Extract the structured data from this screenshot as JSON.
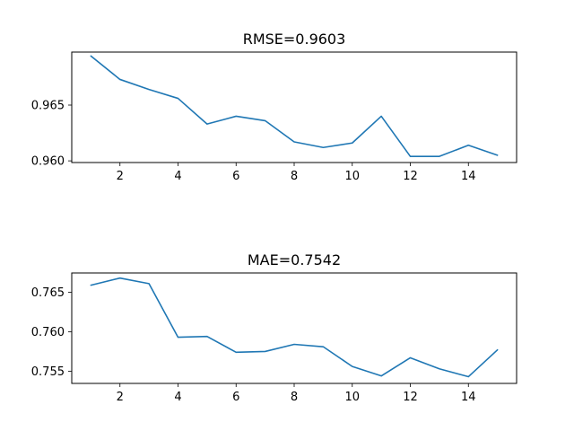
{
  "chart_data": [
    {
      "type": "line",
      "title": "RMSE=0.9603",
      "xlabel": "",
      "ylabel": "",
      "xlim": [
        0.34,
        15.66
      ],
      "ylim": [
        0.95985,
        0.96975
      ],
      "xticks": [
        2,
        4,
        6,
        8,
        10,
        12,
        14
      ],
      "yticks": [
        0.96,
        0.965
      ],
      "ytick_labels": [
        "0.960",
        "0.965"
      ],
      "grid": false,
      "series": [
        {
          "color": "#1f77b4",
          "x": [
            1,
            2,
            3,
            4,
            5,
            6,
            7,
            8,
            9,
            10,
            11,
            12,
            13,
            14,
            15
          ],
          "y": [
            0.9694,
            0.9673,
            0.9664,
            0.9656,
            0.9633,
            0.964,
            0.9636,
            0.9617,
            0.9612,
            0.9616,
            0.964,
            0.9604,
            0.9604,
            0.9614,
            0.9605
          ]
        }
      ]
    },
    {
      "type": "line",
      "title": "MAE=0.7542",
      "xlabel": "",
      "ylabel": "",
      "xlim": [
        0.34,
        15.66
      ],
      "ylim": [
        0.75345,
        0.76745
      ],
      "xticks": [
        2,
        4,
        6,
        8,
        10,
        12,
        14
      ],
      "yticks": [
        0.755,
        0.76,
        0.765
      ],
      "ytick_labels": [
        "0.755",
        "0.760",
        "0.765"
      ],
      "grid": false,
      "series": [
        {
          "color": "#1f77b4",
          "x": [
            1,
            2,
            3,
            4,
            5,
            6,
            7,
            8,
            9,
            10,
            11,
            12,
            13,
            14,
            15
          ],
          "y": [
            0.7659,
            0.7668,
            0.7661,
            0.7593,
            0.7594,
            0.7574,
            0.7575,
            0.7584,
            0.7581,
            0.7556,
            0.7544,
            0.7567,
            0.7553,
            0.7543,
            0.7577
          ]
        }
      ]
    }
  ]
}
